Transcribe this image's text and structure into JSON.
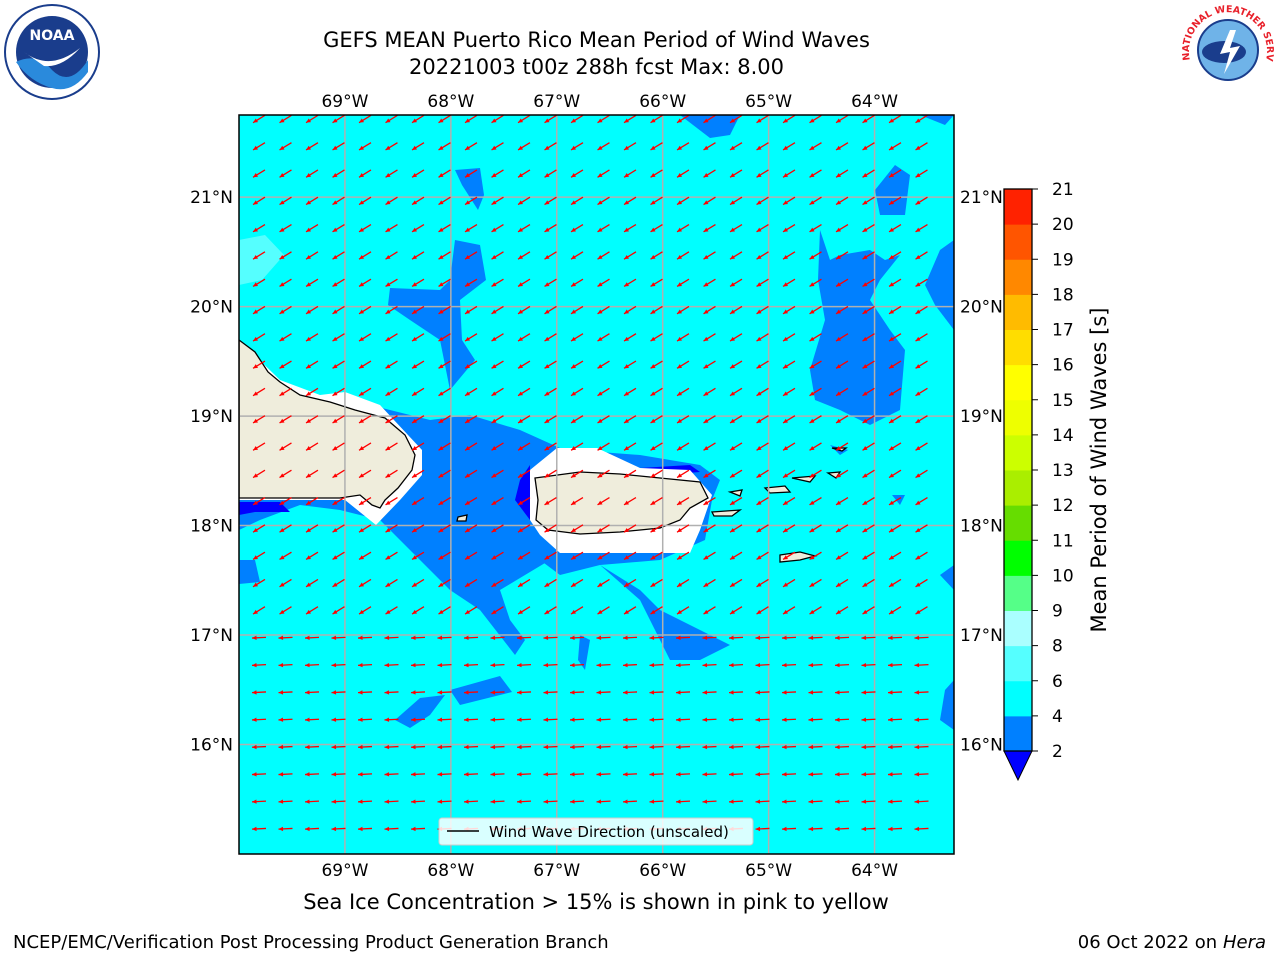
{
  "header": {
    "title_line1": "GEFS MEAN Puerto Rico Mean Period of Wind Waves",
    "title_line2": "20221003 t00z 288h fcst   Max: 8.00"
  },
  "logos": {
    "noaa_text": "NOAA",
    "nws_text": "NATIONAL WEATHER SERVICE"
  },
  "map": {
    "lon_labels": [
      "69°W",
      "68°W",
      "67°W",
      "66°W",
      "65°W",
      "64°W"
    ],
    "lat_labels": [
      "21°N",
      "20°N",
      "19°N",
      "18°N",
      "17°N",
      "16°N"
    ],
    "lon_values": [
      -69,
      -68,
      -67,
      -66,
      -65,
      -64
    ],
    "lat_values": [
      21,
      20,
      19,
      18,
      17,
      16
    ],
    "lon_range": [
      -70.0,
      -63.25
    ],
    "lat_range": [
      15.0,
      21.75
    ],
    "grid": true,
    "colors": {
      "ocean_4_6": "#00ffff",
      "band_2_4": "#0080ff",
      "band_below_2": "#0000ff",
      "land": "#efeddc",
      "arrow": "#ff0000",
      "light_6_8": "#55ffff"
    },
    "legend": {
      "label": "Wind Wave Direction (unscaled)",
      "placement": "lower-center"
    }
  },
  "colorbar": {
    "label": "Mean Period of Wind Waves [s]",
    "ticks": [
      "2",
      "4",
      "6",
      "8",
      "9",
      "10",
      "11",
      "12",
      "13",
      "14",
      "15",
      "16",
      "17",
      "18",
      "19",
      "20",
      "21"
    ],
    "colors": [
      "#0080ff",
      "#00ffff",
      "#55ffff",
      "#aaffff",
      "#55ff88",
      "#00ff00",
      "#66dd00",
      "#aaee00",
      "#ccff00",
      "#eeff00",
      "#ffff00",
      "#ffdd00",
      "#ffbb00",
      "#ff8800",
      "#ff5500",
      "#ff2200"
    ],
    "extend_color": "#0000ff"
  },
  "subtitle": "Sea Ice Concentration > 15% is shown in pink to yellow",
  "footer": {
    "left": "NCEP/EMC/Verification Post Processing Product Generation Branch",
    "right_date": "06 Oct 2022 on ",
    "right_host": "Hera"
  }
}
